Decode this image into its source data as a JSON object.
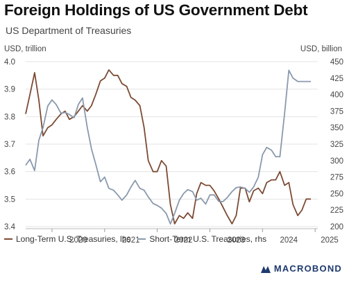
{
  "header": {
    "title": "Foreign Holdings of US Government Debt",
    "subtitle": "US Department of Treasuries"
  },
  "branding": {
    "logo_text": "MACROBOND"
  },
  "chart_data": {
    "type": "line",
    "xlabels": [
      "2020",
      "2021",
      "2022",
      "2023",
      "2024",
      "2025"
    ],
    "x_range": [
      2019.5,
      2025.05
    ],
    "left_axis": {
      "unit": "USD, trillion",
      "ticks": [
        "3.4",
        "3.5",
        "3.6",
        "3.7",
        "3.8",
        "3.9",
        "4.0"
      ],
      "ylim": [
        3.4,
        4.0
      ]
    },
    "right_axis": {
      "unit": "USD, billion",
      "ticks": [
        "200",
        "225",
        "250",
        "275",
        "300",
        "325",
        "350",
        "375",
        "400",
        "425",
        "450"
      ],
      "ylim": [
        200,
        450
      ]
    },
    "grid": true,
    "legend_position": "bottom",
    "series": [
      {
        "name": "Long-Term U.S. Treasuries, lhs",
        "axis": "left",
        "color": "#7b4a33",
        "x": [
          2019.5,
          2019.58,
          2019.67,
          2019.75,
          2019.83,
          2019.92,
          2020.0,
          2020.08,
          2020.17,
          2020.25,
          2020.33,
          2020.42,
          2020.5,
          2020.58,
          2020.67,
          2020.75,
          2020.83,
          2020.92,
          2021.0,
          2021.08,
          2021.17,
          2021.25,
          2021.33,
          2021.42,
          2021.5,
          2021.58,
          2021.67,
          2021.75,
          2021.83,
          2021.92,
          2022.0,
          2022.08,
          2022.17,
          2022.25,
          2022.33,
          2022.42,
          2022.5,
          2022.58,
          2022.67,
          2022.75,
          2022.83,
          2022.92,
          2023.0,
          2023.08,
          2023.17,
          2023.25,
          2023.33,
          2023.42,
          2023.5,
          2023.58,
          2023.67,
          2023.75,
          2023.83,
          2023.92,
          2024.0,
          2024.08,
          2024.17,
          2024.25,
          2024.33,
          2024.42,
          2024.5,
          2024.58,
          2024.67,
          2024.75,
          2024.83,
          2024.92
        ],
        "values": [
          3.81,
          3.88,
          3.96,
          3.86,
          3.73,
          3.76,
          3.77,
          3.79,
          3.81,
          3.82,
          3.79,
          3.8,
          3.82,
          3.84,
          3.82,
          3.84,
          3.88,
          3.93,
          3.94,
          3.97,
          3.95,
          3.95,
          3.92,
          3.91,
          3.87,
          3.86,
          3.84,
          3.76,
          3.64,
          3.6,
          3.6,
          3.64,
          3.62,
          3.48,
          3.41,
          3.44,
          3.43,
          3.45,
          3.43,
          3.52,
          3.56,
          3.55,
          3.55,
          3.53,
          3.5,
          3.47,
          3.44,
          3.41,
          3.44,
          3.54,
          3.54,
          3.49,
          3.53,
          3.54,
          3.52,
          3.56,
          3.57,
          3.57,
          3.6,
          3.55,
          3.56,
          3.48,
          3.44,
          3.46,
          3.5,
          3.5
        ]
      },
      {
        "name": "Short-Term U.S. Treasuries, rhs",
        "axis": "right",
        "color": "#8a99ad",
        "x": [
          2019.5,
          2019.58,
          2019.67,
          2019.75,
          2019.83,
          2019.92,
          2020.0,
          2020.08,
          2020.17,
          2020.25,
          2020.33,
          2020.42,
          2020.5,
          2020.58,
          2020.67,
          2020.75,
          2020.83,
          2020.92,
          2021.0,
          2021.08,
          2021.17,
          2021.25,
          2021.33,
          2021.42,
          2021.5,
          2021.58,
          2021.67,
          2021.75,
          2021.83,
          2021.92,
          2022.0,
          2022.08,
          2022.17,
          2022.25,
          2022.33,
          2022.42,
          2022.5,
          2022.58,
          2022.67,
          2022.75,
          2022.83,
          2022.92,
          2023.0,
          2023.08,
          2023.17,
          2023.25,
          2023.33,
          2023.42,
          2023.5,
          2023.58,
          2023.67,
          2023.75,
          2023.83,
          2023.92,
          2024.0,
          2024.08,
          2024.17,
          2024.25,
          2024.33,
          2024.42,
          2024.5,
          2024.58,
          2024.67,
          2024.75,
          2024.83,
          2024.92
        ],
        "values": [
          293,
          302,
          285,
          331,
          350,
          383,
          392,
          385,
          372,
          373,
          370,
          365,
          385,
          395,
          350,
          318,
          295,
          268,
          275,
          258,
          255,
          248,
          240,
          248,
          260,
          270,
          258,
          255,
          245,
          235,
          232,
          228,
          220,
          204,
          220,
          240,
          250,
          256,
          253,
          240,
          243,
          234,
          248,
          248,
          238,
          238,
          244,
          253,
          259,
          260,
          258,
          252,
          260,
          275,
          309,
          320,
          316,
          306,
          306,
          372,
          437,
          425,
          420,
          420,
          420,
          420
        ]
      }
    ]
  }
}
